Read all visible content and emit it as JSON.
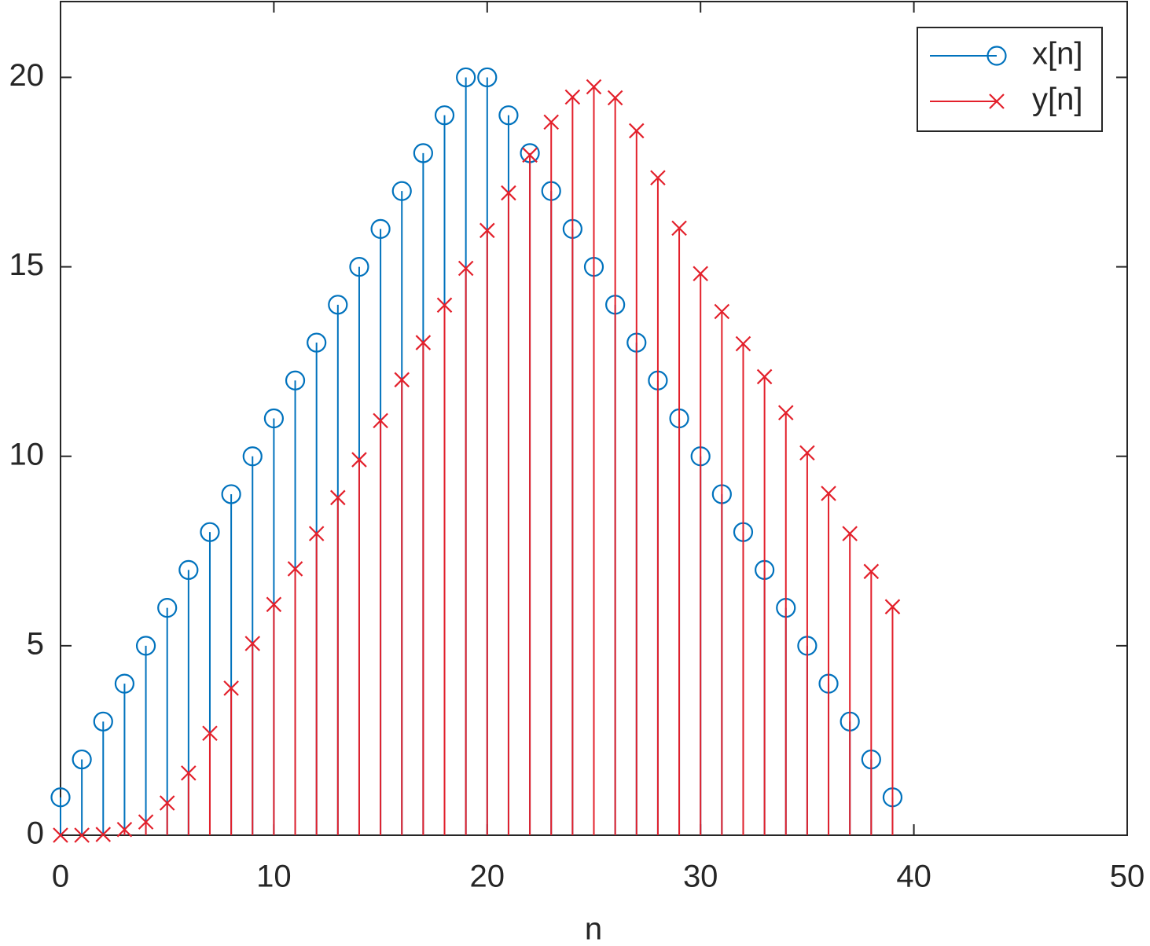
{
  "chart_data": {
    "type": "stem",
    "x": [
      0,
      1,
      2,
      3,
      4,
      5,
      6,
      7,
      8,
      9,
      10,
      11,
      12,
      13,
      14,
      15,
      16,
      17,
      18,
      19,
      20,
      21,
      22,
      23,
      24,
      25,
      26,
      27,
      28,
      29,
      30,
      31,
      32,
      33,
      34,
      35,
      36,
      37,
      38,
      39
    ],
    "series": [
      {
        "name": "x[n]",
        "color": "#0072bd",
        "marker": "o",
        "values": [
          1,
          2,
          3,
          4,
          5,
          6,
          7,
          8,
          9,
          10,
          11,
          12,
          13,
          14,
          15,
          16,
          17,
          18,
          19,
          20,
          20,
          19,
          18,
          17,
          16,
          15,
          14,
          13,
          12,
          11,
          10,
          9,
          8,
          7,
          6,
          5,
          4,
          3,
          2,
          1
        ]
      },
      {
        "name": "y[n]",
        "color": "#e3202b",
        "marker": "x",
        "values": [
          0,
          0,
          0.02,
          0.15,
          0.35,
          0.85,
          1.64,
          2.69,
          3.88,
          5.06,
          6.09,
          7.03,
          7.96,
          8.91,
          9.91,
          10.94,
          12.02,
          13,
          13.99,
          14.96,
          15.96,
          16.95,
          17.95,
          18.82,
          19.48,
          19.75,
          19.46,
          18.59,
          17.35,
          16.02,
          14.82,
          13.82,
          12.97,
          12.1,
          11.15,
          10.09,
          9.02,
          7.96,
          6.96,
          6.03
        ]
      }
    ],
    "xlabel": "n",
    "xlim": [
      0,
      50
    ],
    "xticks": [
      0,
      10,
      20,
      30,
      40,
      50
    ],
    "ylim": [
      0,
      22
    ],
    "yticks": [
      0,
      5,
      10,
      15,
      20
    ],
    "legend": "northeast"
  }
}
